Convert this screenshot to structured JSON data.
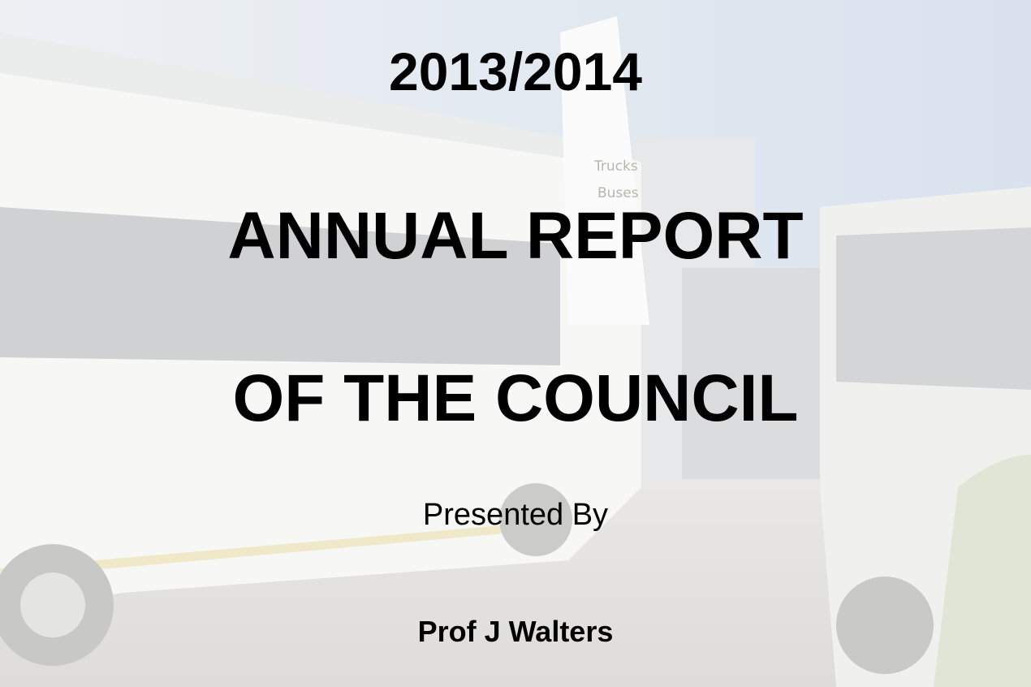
{
  "slide": {
    "year": "2013/2014",
    "title_lines": [
      "ANNUAL REPORT",
      "OF THE COUNCIL"
    ],
    "presented_label": "Presented By",
    "presenter": "Prof J Walters"
  },
  "background": {
    "signs": [
      "Trucks",
      "Buses"
    ]
  }
}
